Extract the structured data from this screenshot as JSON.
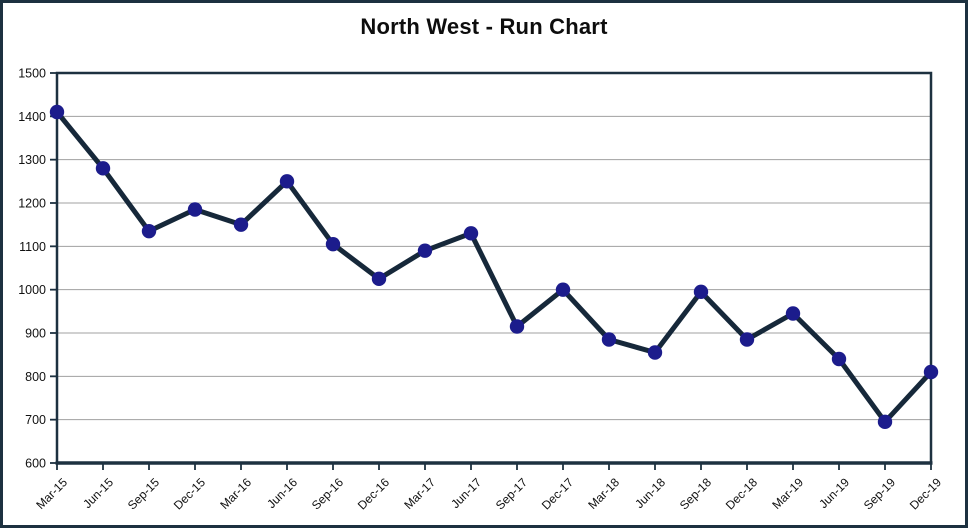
{
  "chart_data": {
    "type": "line",
    "title": "North West - Run Chart",
    "categories": [
      "Mar-15",
      "Jun-15",
      "Sep-15",
      "Dec-15",
      "Mar-16",
      "Jun-16",
      "Sep-16",
      "Dec-16",
      "Mar-17",
      "Jun-17",
      "Sep-17",
      "Dec-17",
      "Mar-18",
      "Jun-18",
      "Sep-18",
      "Dec-18",
      "Mar-19",
      "Jun-19",
      "Sep-19",
      "Dec-19"
    ],
    "values": [
      1410,
      1280,
      1135,
      1185,
      1150,
      1250,
      1105,
      1025,
      1090,
      1130,
      915,
      1000,
      885,
      855,
      995,
      885,
      945,
      840,
      695,
      810
    ],
    "xlabel": "",
    "ylabel": "",
    "ylim": [
      600,
      1500
    ],
    "ytick_step": 100,
    "ytick_labels": [
      "600",
      "700",
      "800",
      "900",
      "1000",
      "1100",
      "1200",
      "1300",
      "1400",
      "1500"
    ],
    "grid": "horizontal",
    "legend": "none",
    "marker": "circle",
    "x_label_rotation_deg": 45,
    "colors": {
      "line": "#16283a",
      "marker_fill": "#1c1c8c",
      "axis": "#1d3140",
      "plot_border": "#1d3140",
      "frame_border": "#1d3140",
      "gridline": "#a0a0a0",
      "tick_text": "#111111",
      "title_text": "#0d0d0d",
      "background": "#ffffff"
    }
  }
}
